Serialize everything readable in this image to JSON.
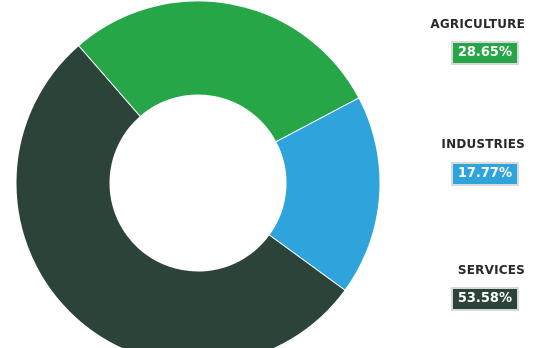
{
  "chart_data": {
    "type": "pie",
    "variant": "donut",
    "title": "",
    "legend_position": "right",
    "slices": [
      {
        "label": "AGRICULTURE",
        "value": 28.65,
        "display": "28.65%",
        "color": "#26a647"
      },
      {
        "label": "INDUSTRIES",
        "value": 17.77,
        "display": "17.77%",
        "color": "#2fa3dc"
      },
      {
        "label": "SERVICES",
        "value": 53.58,
        "display": "53.58%",
        "color": "#2b4338"
      }
    ]
  }
}
